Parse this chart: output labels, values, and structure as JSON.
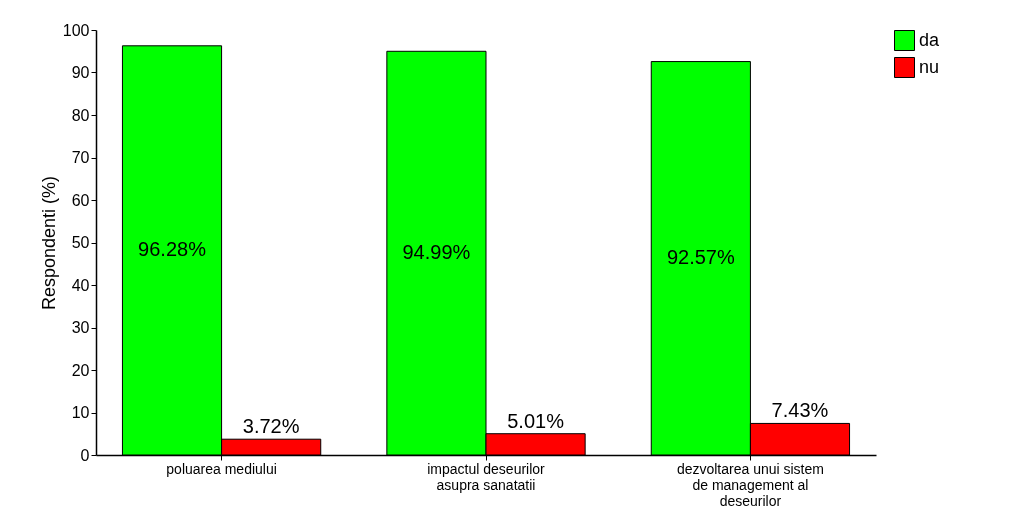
{
  "chart_data": {
    "type": "bar",
    "ylabel": "Respondenti (%)",
    "categories": [
      "poluarea mediului",
      "impactul deseurilor asupra sanatatii",
      "dezvoltarea unui sistem de management al deseurilor"
    ],
    "series": [
      {
        "name": "da",
        "color": "#00ff00",
        "values": [
          96.28,
          94.99,
          92.57
        ],
        "value_labels": [
          "96.28%",
          "94.99%",
          "92.57%"
        ]
      },
      {
        "name": "nu",
        "color": "#ff0000",
        "values": [
          3.72,
          5.01,
          7.43
        ],
        "value_labels": [
          "3.72%",
          "5.01%",
          "7.43%"
        ]
      }
    ],
    "ylim": [
      0,
      100
    ],
    "yticks": [
      0,
      10,
      20,
      30,
      40,
      50,
      60,
      70,
      80,
      90,
      100
    ],
    "grid": false,
    "legend": "right"
  }
}
